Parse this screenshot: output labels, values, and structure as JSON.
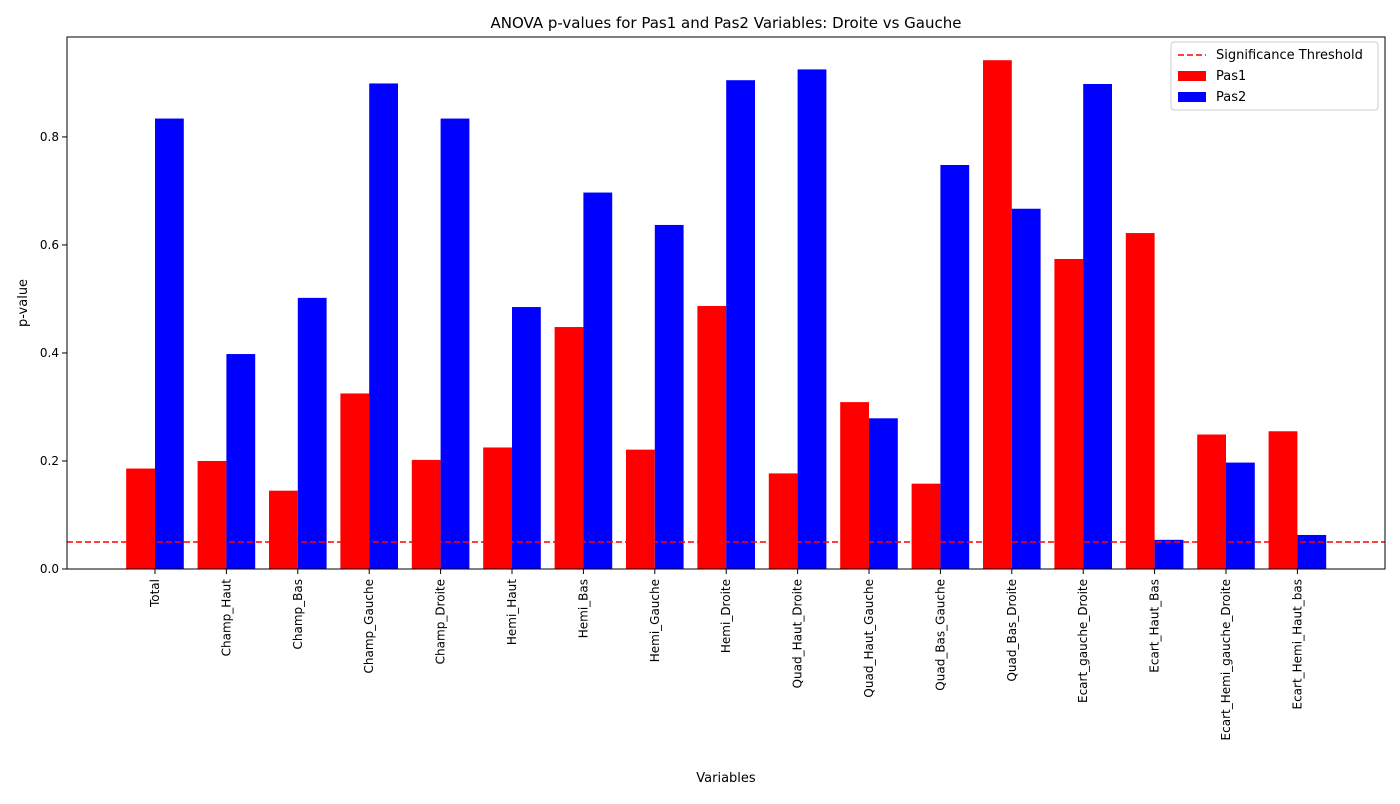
{
  "chart_data": {
    "type": "bar",
    "title": "ANOVA p-values for Pas1 and Pas2 Variables: Droite vs Gauche",
    "xlabel": "Variables",
    "ylabel": "p-value",
    "ylim": [
      0,
      0.985
    ],
    "yticks": [
      "0.0",
      "0.2",
      "0.4",
      "0.6",
      "0.8"
    ],
    "grid": false,
    "legend_position": "top-right",
    "categories": [
      "Total",
      "Champ_Haut",
      "Champ_Bas",
      "Champ_Gauche",
      "Champ_Droite",
      "Hemi_Haut",
      "Hemi_Bas",
      "Hemi_Gauche",
      "Hemi_Droite",
      "Quad_Haut_Droite",
      "Quad_Haut_Gauche",
      "Quad_Bas_Gauche",
      "Quad_Bas_Droite",
      "Ecart_gauche_Droite",
      "Ecart_Haut_Bas",
      "Ecart_Hemi_gauche_Droite",
      "Ecart_Hemi_Haut_bas"
    ],
    "series": [
      {
        "name": "Pas1",
        "color": "#ff0000",
        "values": [
          0.186,
          0.2,
          0.145,
          0.325,
          0.202,
          0.225,
          0.448,
          0.221,
          0.487,
          0.177,
          0.309,
          0.158,
          0.942,
          0.574,
          0.622,
          0.249,
          0.255
        ]
      },
      {
        "name": "Pas2",
        "color": "#0000ff",
        "values": [
          0.834,
          0.398,
          0.502,
          0.899,
          0.834,
          0.485,
          0.697,
          0.637,
          0.905,
          0.925,
          0.279,
          0.748,
          0.667,
          0.898,
          0.054,
          0.197,
          0.063
        ]
      }
    ],
    "threshold": {
      "name": "Significance Threshold",
      "value": 0.05,
      "color": "#ff0000",
      "style": "dashed"
    }
  }
}
